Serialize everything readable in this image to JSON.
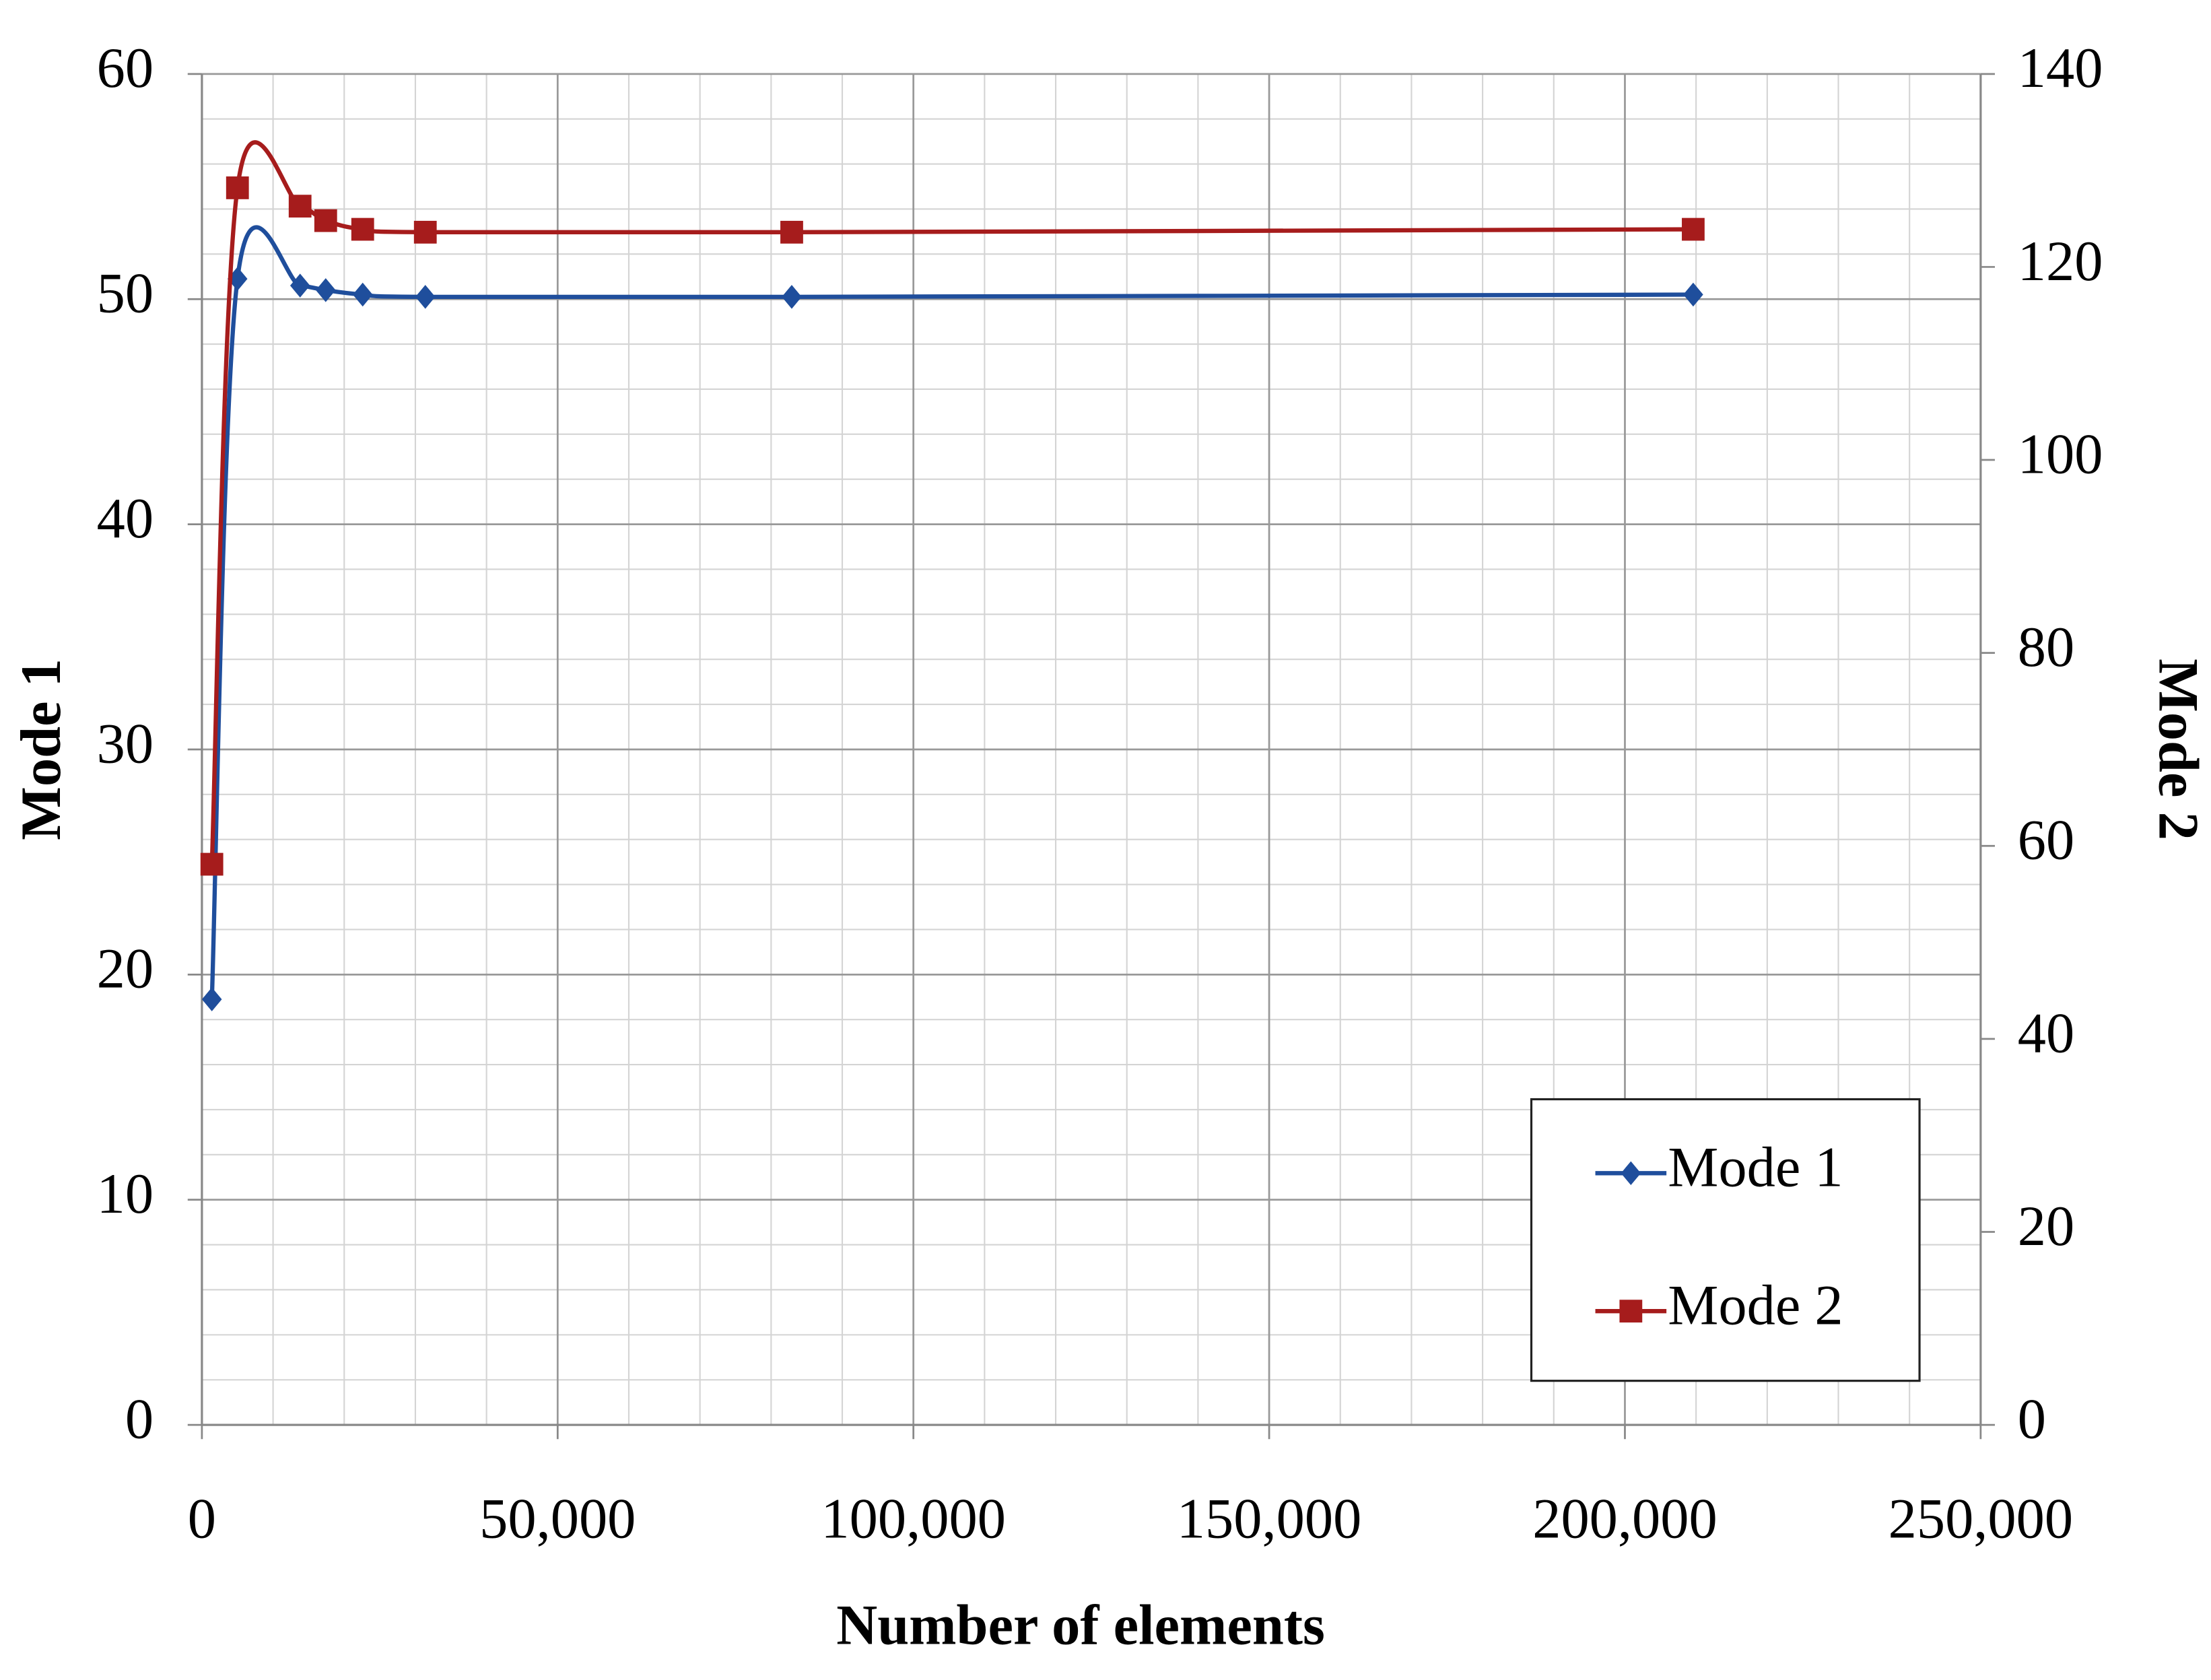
{
  "chart_data": {
    "type": "line",
    "x_label": "Number of elements",
    "y_label": "Mode 1",
    "y2_label": "Mode 2",
    "x": [
      1400,
      5000,
      13800,
      17400,
      22600,
      31400,
      82900,
      209600
    ],
    "series": [
      {
        "name": "Mode 1",
        "color": "#1f4e9c",
        "marker": "diamond",
        "values": [
          18.9,
          50.9,
          50.6,
          50.4,
          50.2,
          50.1,
          50.1,
          50.2
        ]
      },
      {
        "name": "Mode 2",
        "color": "#a61c1c",
        "marker": "square",
        "axis": "y2",
        "values": [
          58.1,
          128.2,
          126.3,
          124.8,
          123.9,
          123.6,
          123.6,
          123.9
        ]
      }
    ],
    "xlim": [
      0,
      250000
    ],
    "xticks": [
      0,
      {
        "value": 50000,
        "label": "50,000"
      },
      {
        "value": 100000,
        "label": "100,000"
      },
      {
        "value": 150000,
        "label": "150,000"
      },
      {
        "value": 200000,
        "label": "200,000"
      },
      {
        "value": 250000,
        "label": "250,000"
      }
    ],
    "ylim": [
      0,
      60
    ],
    "yticks": [
      0,
      10,
      20,
      30,
      40,
      50,
      60
    ],
    "y2lim": [
      0,
      140
    ],
    "y2ticks": [
      0,
      20,
      40,
      60,
      80,
      100,
      120,
      140
    ],
    "grid": true,
    "minor_grid": {
      "x": 10000,
      "y": 2
    },
    "smooth": true,
    "legend": "bottom-right"
  }
}
